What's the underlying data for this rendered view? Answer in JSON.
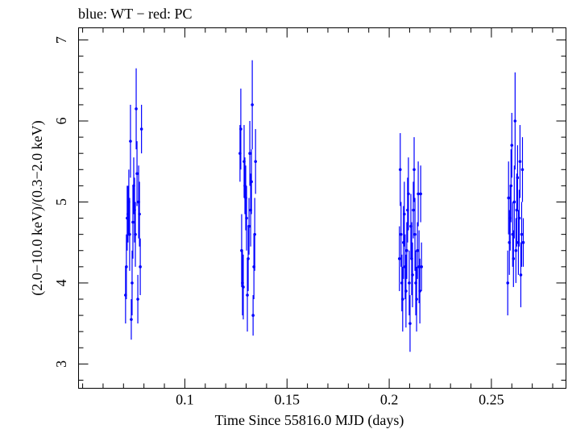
{
  "colors": {
    "series": "#0000ff",
    "axis": "#000000",
    "background": "#ffffff"
  },
  "chart_data": {
    "type": "scatter",
    "title": "blue: WT − red: PC",
    "xlabel": "Time Since 55816.0 MJD (days)",
    "ylabel": "(2.0−10.0 keV)/(0.3−2.0 keV)",
    "xlim": [
      0.048,
      0.2865
    ],
    "ylim": [
      2.7,
      7.15
    ],
    "xticks": [
      0.1,
      0.15,
      0.2,
      0.25
    ],
    "xtick_labels": [
      "0.1",
      "0.15",
      "0.2",
      "0.25"
    ],
    "yticks": [
      3,
      4,
      5,
      6,
      7
    ],
    "ytick_labels": [
      "3",
      "4",
      "5",
      "6",
      "7"
    ],
    "grid": false,
    "series": [
      {
        "color": "#0000ff",
        "points": [
          {
            "x": 0.071,
            "y": 3.85,
            "err": 0.35
          },
          {
            "x": 0.0714,
            "y": 4.2,
            "err": 0.4
          },
          {
            "x": 0.0718,
            "y": 4.8,
            "err": 0.4
          },
          {
            "x": 0.0722,
            "y": 4.85,
            "err": 0.35
          },
          {
            "x": 0.0726,
            "y": 5.0,
            "err": 0.4
          },
          {
            "x": 0.073,
            "y": 4.6,
            "err": 0.45
          },
          {
            "x": 0.0734,
            "y": 5.75,
            "err": 0.45
          },
          {
            "x": 0.0738,
            "y": 3.55,
            "err": 0.25
          },
          {
            "x": 0.0742,
            "y": 4.0,
            "err": 0.4
          },
          {
            "x": 0.0746,
            "y": 4.75,
            "err": 0.45
          },
          {
            "x": 0.075,
            "y": 5.2,
            "err": 0.35
          },
          {
            "x": 0.0754,
            "y": 4.9,
            "err": 0.4
          },
          {
            "x": 0.0758,
            "y": 4.6,
            "err": 0.4
          },
          {
            "x": 0.0762,
            "y": 6.15,
            "err": 0.5
          },
          {
            "x": 0.0766,
            "y": 5.35,
            "err": 0.4
          },
          {
            "x": 0.077,
            "y": 3.8,
            "err": 0.3
          },
          {
            "x": 0.0774,
            "y": 5.0,
            "err": 0.45
          },
          {
            "x": 0.0778,
            "y": 4.85,
            "err": 0.4
          },
          {
            "x": 0.0782,
            "y": 4.2,
            "err": 0.35
          },
          {
            "x": 0.0788,
            "y": 5.9,
            "err": 0.3
          },
          {
            "x": 0.127,
            "y": 5.6,
            "err": 0.35
          },
          {
            "x": 0.1274,
            "y": 5.9,
            "err": 0.5
          },
          {
            "x": 0.1278,
            "y": 4.4,
            "err": 0.45
          },
          {
            "x": 0.1282,
            "y": 4.0,
            "err": 0.4
          },
          {
            "x": 0.1286,
            "y": 3.95,
            "err": 0.4
          },
          {
            "x": 0.129,
            "y": 5.5,
            "err": 0.45
          },
          {
            "x": 0.1294,
            "y": 5.2,
            "err": 0.35
          },
          {
            "x": 0.1298,
            "y": 5.05,
            "err": 0.4
          },
          {
            "x": 0.1302,
            "y": 4.8,
            "err": 0.4
          },
          {
            "x": 0.1306,
            "y": 3.85,
            "err": 0.45
          },
          {
            "x": 0.131,
            "y": 4.3,
            "err": 0.4
          },
          {
            "x": 0.1314,
            "y": 4.7,
            "err": 0.35
          },
          {
            "x": 0.1318,
            "y": 5.6,
            "err": 0.4
          },
          {
            "x": 0.1322,
            "y": 4.9,
            "err": 0.45
          },
          {
            "x": 0.1326,
            "y": 5.25,
            "err": 0.4
          },
          {
            "x": 0.133,
            "y": 6.2,
            "err": 0.55
          },
          {
            "x": 0.1334,
            "y": 3.6,
            "err": 0.25
          },
          {
            "x": 0.1338,
            "y": 4.2,
            "err": 0.4
          },
          {
            "x": 0.1342,
            "y": 4.6,
            "err": 0.45
          },
          {
            "x": 0.1346,
            "y": 5.5,
            "err": 0.4
          },
          {
            "x": 0.205,
            "y": 4.3,
            "err": 0.4
          },
          {
            "x": 0.2054,
            "y": 5.4,
            "err": 0.45
          },
          {
            "x": 0.2058,
            "y": 4.6,
            "err": 0.4
          },
          {
            "x": 0.2062,
            "y": 4.0,
            "err": 0.35
          },
          {
            "x": 0.2066,
            "y": 3.8,
            "err": 0.4
          },
          {
            "x": 0.207,
            "y": 4.5,
            "err": 0.45
          },
          {
            "x": 0.2074,
            "y": 4.85,
            "err": 0.4
          },
          {
            "x": 0.2078,
            "y": 4.2,
            "err": 0.4
          },
          {
            "x": 0.2082,
            "y": 3.9,
            "err": 0.45
          },
          {
            "x": 0.2086,
            "y": 4.4,
            "err": 0.35
          },
          {
            "x": 0.209,
            "y": 4.9,
            "err": 0.4
          },
          {
            "x": 0.2094,
            "y": 5.1,
            "err": 0.45
          },
          {
            "x": 0.2098,
            "y": 4.0,
            "err": 0.4
          },
          {
            "x": 0.2102,
            "y": 3.5,
            "err": 0.35
          },
          {
            "x": 0.2106,
            "y": 4.7,
            "err": 0.4
          },
          {
            "x": 0.211,
            "y": 4.3,
            "err": 0.45
          },
          {
            "x": 0.2114,
            "y": 4.1,
            "err": 0.4
          },
          {
            "x": 0.2118,
            "y": 4.9,
            "err": 0.35
          },
          {
            "x": 0.2122,
            "y": 5.4,
            "err": 0.4
          },
          {
            "x": 0.2126,
            "y": 4.6,
            "err": 0.45
          },
          {
            "x": 0.213,
            "y": 4.0,
            "err": 0.4
          },
          {
            "x": 0.2134,
            "y": 3.8,
            "err": 0.4
          },
          {
            "x": 0.2138,
            "y": 4.4,
            "err": 0.35
          },
          {
            "x": 0.2142,
            "y": 5.1,
            "err": 0.4
          },
          {
            "x": 0.2146,
            "y": 4.2,
            "err": 0.45
          },
          {
            "x": 0.215,
            "y": 3.9,
            "err": 0.4
          },
          {
            "x": 0.2154,
            "y": 5.1,
            "err": 0.35
          },
          {
            "x": 0.2158,
            "y": 4.2,
            "err": 0.3
          },
          {
            "x": 0.258,
            "y": 4.0,
            "err": 0.4
          },
          {
            "x": 0.2584,
            "y": 5.05,
            "err": 0.45
          },
          {
            "x": 0.2588,
            "y": 4.5,
            "err": 0.4
          },
          {
            "x": 0.2592,
            "y": 4.8,
            "err": 0.4
          },
          {
            "x": 0.2596,
            "y": 5.2,
            "err": 0.45
          },
          {
            "x": 0.26,
            "y": 5.7,
            "err": 0.4
          },
          {
            "x": 0.2604,
            "y": 4.6,
            "err": 0.4
          },
          {
            "x": 0.2608,
            "y": 4.3,
            "err": 0.35
          },
          {
            "x": 0.2612,
            "y": 5.0,
            "err": 0.45
          },
          {
            "x": 0.2616,
            "y": 6.0,
            "err": 0.6
          },
          {
            "x": 0.262,
            "y": 4.4,
            "err": 0.4
          },
          {
            "x": 0.2624,
            "y": 4.9,
            "err": 0.45
          },
          {
            "x": 0.2628,
            "y": 5.3,
            "err": 0.4
          },
          {
            "x": 0.2632,
            "y": 4.5,
            "err": 0.4
          },
          {
            "x": 0.2636,
            "y": 4.8,
            "err": 0.35
          },
          {
            "x": 0.264,
            "y": 5.5,
            "err": 0.45
          },
          {
            "x": 0.2644,
            "y": 4.1,
            "err": 0.4
          },
          {
            "x": 0.2648,
            "y": 4.6,
            "err": 0.4
          },
          {
            "x": 0.2652,
            "y": 5.4,
            "err": 0.4
          },
          {
            "x": 0.2656,
            "y": 4.5,
            "err": 0.3
          }
        ]
      }
    ]
  }
}
